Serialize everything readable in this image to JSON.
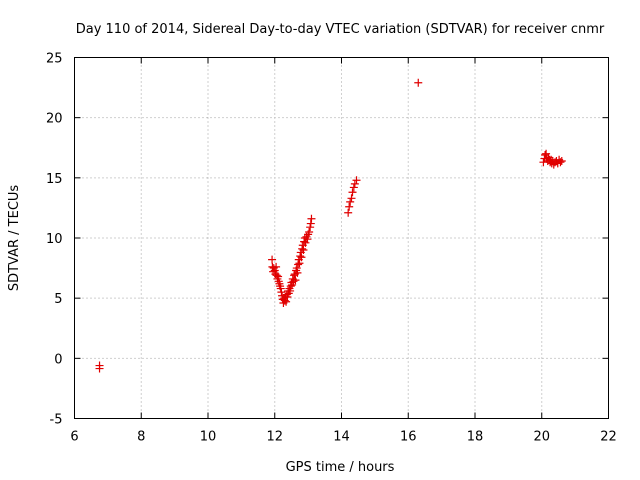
{
  "chart_data": {
    "type": "scatter",
    "title": "Day 110 of 2014, Sidereal Day-to-day VTEC variation (SDTVAR) for receiver cnmr",
    "xlabel": "GPS time / hours",
    "ylabel": "SDTVAR / TECUs",
    "xlim": [
      6,
      22
    ],
    "ylim": [
      -5,
      25
    ],
    "xticks": [
      6,
      8,
      10,
      12,
      14,
      16,
      18,
      20,
      22
    ],
    "yticks": [
      -5,
      0,
      5,
      10,
      15,
      20,
      25
    ],
    "grid": true,
    "marker": "+",
    "series": [
      {
        "name": "SDTVAR",
        "color": "#e00000",
        "points": [
          [
            6.75,
            -0.6
          ],
          [
            6.75,
            -0.85
          ],
          [
            11.92,
            8.2
          ],
          [
            11.93,
            7.6
          ],
          [
            11.95,
            7.2
          ],
          [
            11.97,
            7.5
          ],
          [
            12.0,
            7.3
          ],
          [
            12.02,
            7.0
          ],
          [
            12.04,
            7.6
          ],
          [
            12.06,
            6.9
          ],
          [
            12.08,
            6.6
          ],
          [
            12.1,
            6.8
          ],
          [
            12.12,
            6.4
          ],
          [
            12.14,
            6.2
          ],
          [
            12.16,
            6.0
          ],
          [
            12.18,
            5.8
          ],
          [
            12.2,
            5.5
          ],
          [
            12.22,
            5.2
          ],
          [
            12.24,
            4.9
          ],
          [
            12.26,
            4.6
          ],
          [
            12.28,
            5.0
          ],
          [
            12.3,
            4.8
          ],
          [
            12.32,
            5.1
          ],
          [
            12.34,
            4.7
          ],
          [
            12.36,
            5.3
          ],
          [
            12.38,
            5.1
          ],
          [
            12.4,
            5.6
          ],
          [
            12.42,
            5.4
          ],
          [
            12.44,
            5.8
          ],
          [
            12.46,
            5.6
          ],
          [
            12.48,
            6.0
          ],
          [
            12.5,
            6.3
          ],
          [
            12.52,
            6.1
          ],
          [
            12.54,
            6.6
          ],
          [
            12.56,
            6.4
          ],
          [
            12.58,
            6.9
          ],
          [
            12.6,
            7.0
          ],
          [
            12.62,
            6.5
          ],
          [
            12.64,
            7.3
          ],
          [
            12.66,
            7.5
          ],
          [
            12.68,
            7.1
          ],
          [
            12.7,
            7.8
          ],
          [
            12.72,
            8.2
          ],
          [
            12.74,
            7.9
          ],
          [
            12.76,
            8.5
          ],
          [
            12.78,
            8.8
          ],
          [
            12.8,
            8.4
          ],
          [
            12.82,
            9.1
          ],
          [
            12.84,
            9.4
          ],
          [
            12.86,
            9.0
          ],
          [
            12.88,
            9.7
          ],
          [
            12.9,
            10.0
          ],
          [
            12.92,
            9.6
          ],
          [
            12.95,
            10.1
          ],
          [
            12.98,
            9.9
          ],
          [
            13.0,
            10.3
          ],
          [
            13.03,
            10.5
          ],
          [
            13.06,
            10.9
          ],
          [
            13.08,
            11.2
          ],
          [
            13.1,
            11.6
          ],
          [
            14.2,
            12.1
          ],
          [
            14.23,
            12.6
          ],
          [
            14.26,
            13.0
          ],
          [
            14.3,
            13.3
          ],
          [
            14.33,
            13.8
          ],
          [
            14.37,
            14.2
          ],
          [
            14.4,
            14.5
          ],
          [
            14.45,
            14.8
          ],
          [
            16.3,
            22.9
          ],
          [
            20.05,
            16.3
          ],
          [
            20.08,
            16.6
          ],
          [
            20.1,
            16.9
          ],
          [
            20.13,
            17.0
          ],
          [
            20.15,
            16.6
          ],
          [
            20.18,
            16.4
          ],
          [
            20.2,
            16.7
          ],
          [
            20.23,
            16.5
          ],
          [
            20.25,
            16.3
          ],
          [
            20.28,
            16.5
          ],
          [
            20.3,
            16.2
          ],
          [
            20.33,
            16.4
          ],
          [
            20.36,
            16.1
          ],
          [
            20.4,
            16.3
          ],
          [
            20.44,
            16.4
          ],
          [
            20.48,
            16.2
          ],
          [
            20.52,
            16.5
          ],
          [
            20.56,
            16.3
          ],
          [
            20.6,
            16.4
          ]
        ]
      }
    ]
  }
}
